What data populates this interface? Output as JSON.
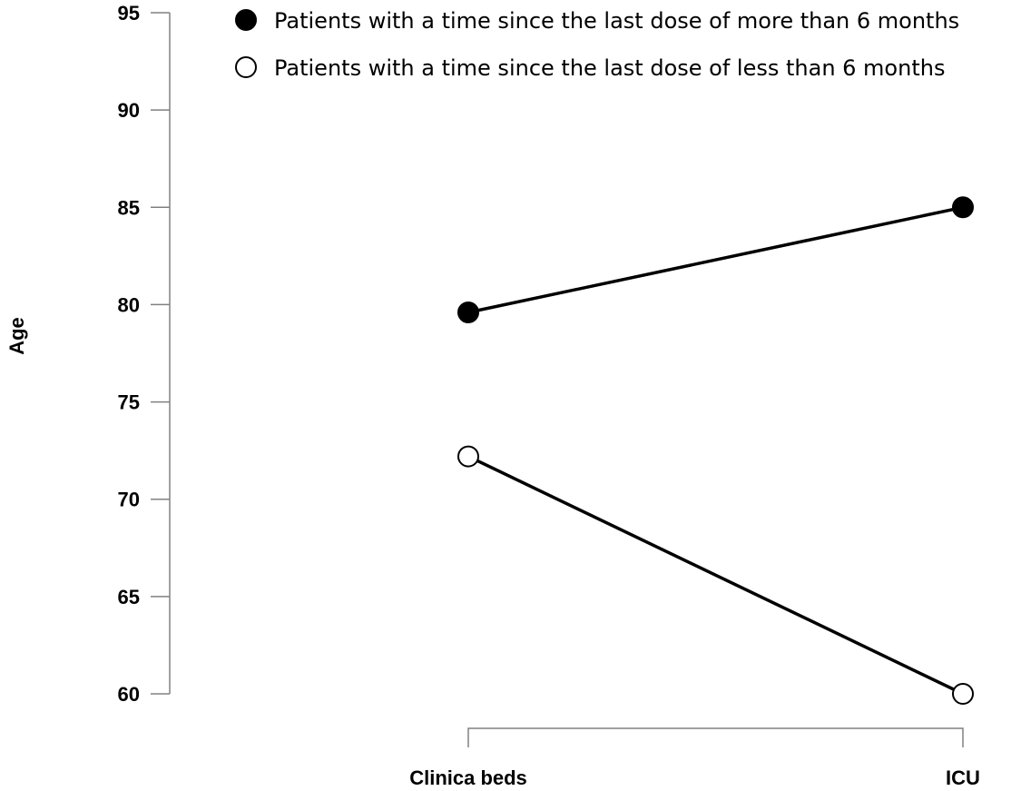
{
  "chart_data": {
    "type": "line",
    "categories": [
      "Clinica beds",
      "ICU"
    ],
    "series": [
      {
        "name": "Patients with a time since the last dose of more than 6 months",
        "marker": "filled-circle",
        "values": [
          79.6,
          85
        ]
      },
      {
        "name": "Patients with a time since the last dose of less than 6 months",
        "marker": "open-circle",
        "values": [
          72.2,
          60
        ]
      }
    ],
    "ylabel": "Age",
    "xlabel": "",
    "ylim": [
      60,
      95
    ],
    "yticks": [
      "95",
      "90",
      "85",
      "80",
      "75",
      "70",
      "65",
      "60"
    ],
    "grid": false,
    "legend_position": "top"
  },
  "colors": {
    "line": "#000000",
    "marker_fill_filled": "#000000",
    "marker_fill_open": "#ffffff"
  }
}
